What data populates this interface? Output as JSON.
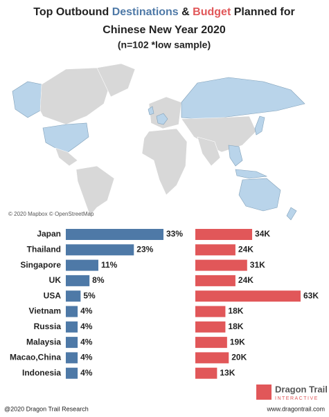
{
  "chart_data": [
    {
      "type": "bar",
      "orientation": "horizontal",
      "title_parts": [
        "Top Outbound",
        "Destinations",
        "&",
        "Budget",
        "Planned for",
        "Chinese New Year 2020"
      ],
      "subtitle": "(n=102 *low sample)",
      "categories": [
        "Japan",
        "Thailand",
        "Singapore",
        "UK",
        "USA",
        "Vietnam",
        "Russia",
        "Malaysia",
        "Macao,China",
        "Indonesia"
      ],
      "values": [
        33,
        23,
        11,
        8,
        5,
        4,
        4,
        4,
        4,
        4
      ],
      "value_labels": [
        "33%",
        "23%",
        "11%",
        "8%",
        "5%",
        "4%",
        "4%",
        "4%",
        "4%",
        "4%"
      ],
      "color": "#4e79a7"
    },
    {
      "type": "bar",
      "orientation": "horizontal",
      "values": [
        34000,
        24000,
        31000,
        24000,
        63000,
        18000,
        18000,
        19000,
        20000,
        13000
      ],
      "value_labels": [
        "34K",
        "24K",
        "31K",
        "24K",
        "63K",
        "18K",
        "18K",
        "19K",
        "20K",
        "13K"
      ],
      "color": "#e15759"
    }
  ],
  "map_credit": "© 2020 Mapbox © OpenStreetMap",
  "logo": {
    "name": "Dragon Trail",
    "tagline": "INTERACTIVE"
  },
  "footer": {
    "left": "@2020 Dragon Trail Research",
    "right": "www.dragontrail.com"
  }
}
